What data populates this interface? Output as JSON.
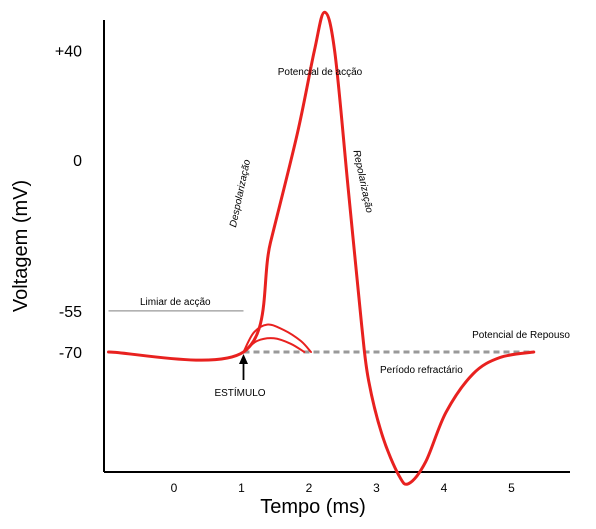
{
  "chart_data": {
    "type": "line",
    "xlabel": "Tempo (ms)",
    "ylabel": "Voltagem (mV)",
    "x_ticks": [
      "0",
      "1",
      "2",
      "3",
      "4",
      "5"
    ],
    "y_ticks": [
      "+40",
      "0",
      "-55",
      "-70"
    ],
    "grid": false,
    "series": [
      {
        "name": "Potencial de acção",
        "color": "#e8211f",
        "points": [
          [
            -1.0,
            -70
          ],
          [
            1.0,
            -70
          ],
          [
            1.4,
            -30
          ],
          [
            1.8,
            10
          ],
          [
            2.05,
            40
          ],
          [
            2.2,
            54
          ],
          [
            2.35,
            40
          ],
          [
            2.55,
            -10
          ],
          [
            2.75,
            -60
          ],
          [
            2.85,
            -80
          ],
          [
            3.05,
            -100
          ],
          [
            3.3,
            -115
          ],
          [
            3.45,
            -118
          ],
          [
            3.7,
            -110
          ],
          [
            4.0,
            -92
          ],
          [
            4.4,
            -78
          ],
          [
            4.8,
            -72
          ],
          [
            5.3,
            -70
          ]
        ]
      },
      {
        "name": "",
        "color": "#e8211f",
        "points": [
          [
            1.0,
            -70
          ],
          [
            1.15,
            -63
          ],
          [
            1.35,
            -60
          ],
          [
            1.6,
            -62
          ],
          [
            1.85,
            -66
          ],
          [
            2.0,
            -70
          ]
        ]
      },
      {
        "name": "",
        "color": "#e8211f",
        "points": [
          [
            1.0,
            -70
          ],
          [
            1.2,
            -66
          ],
          [
            1.45,
            -65
          ],
          [
            1.7,
            -67
          ],
          [
            1.9,
            -70
          ]
        ]
      }
    ],
    "reference_lines": [
      {
        "y": -55,
        "x_from": -1.0,
        "x_to": 1.0,
        "color": "#999999",
        "style": "solid"
      },
      {
        "y": -70,
        "x_from": 1.0,
        "x_to": 5.3,
        "color": "#999999",
        "style": "dashed"
      }
    ],
    "annotations": [
      {
        "text": "Potencial de acção"
      },
      {
        "text": "Despolarização"
      },
      {
        "text": "Repolarização"
      },
      {
        "text": "Limiar de acção"
      },
      {
        "text": "Potencial de Repouso"
      },
      {
        "text": "Período refractário"
      },
      {
        "text": "ESTÍMULO"
      }
    ],
    "stimulus_x": 1.0
  }
}
